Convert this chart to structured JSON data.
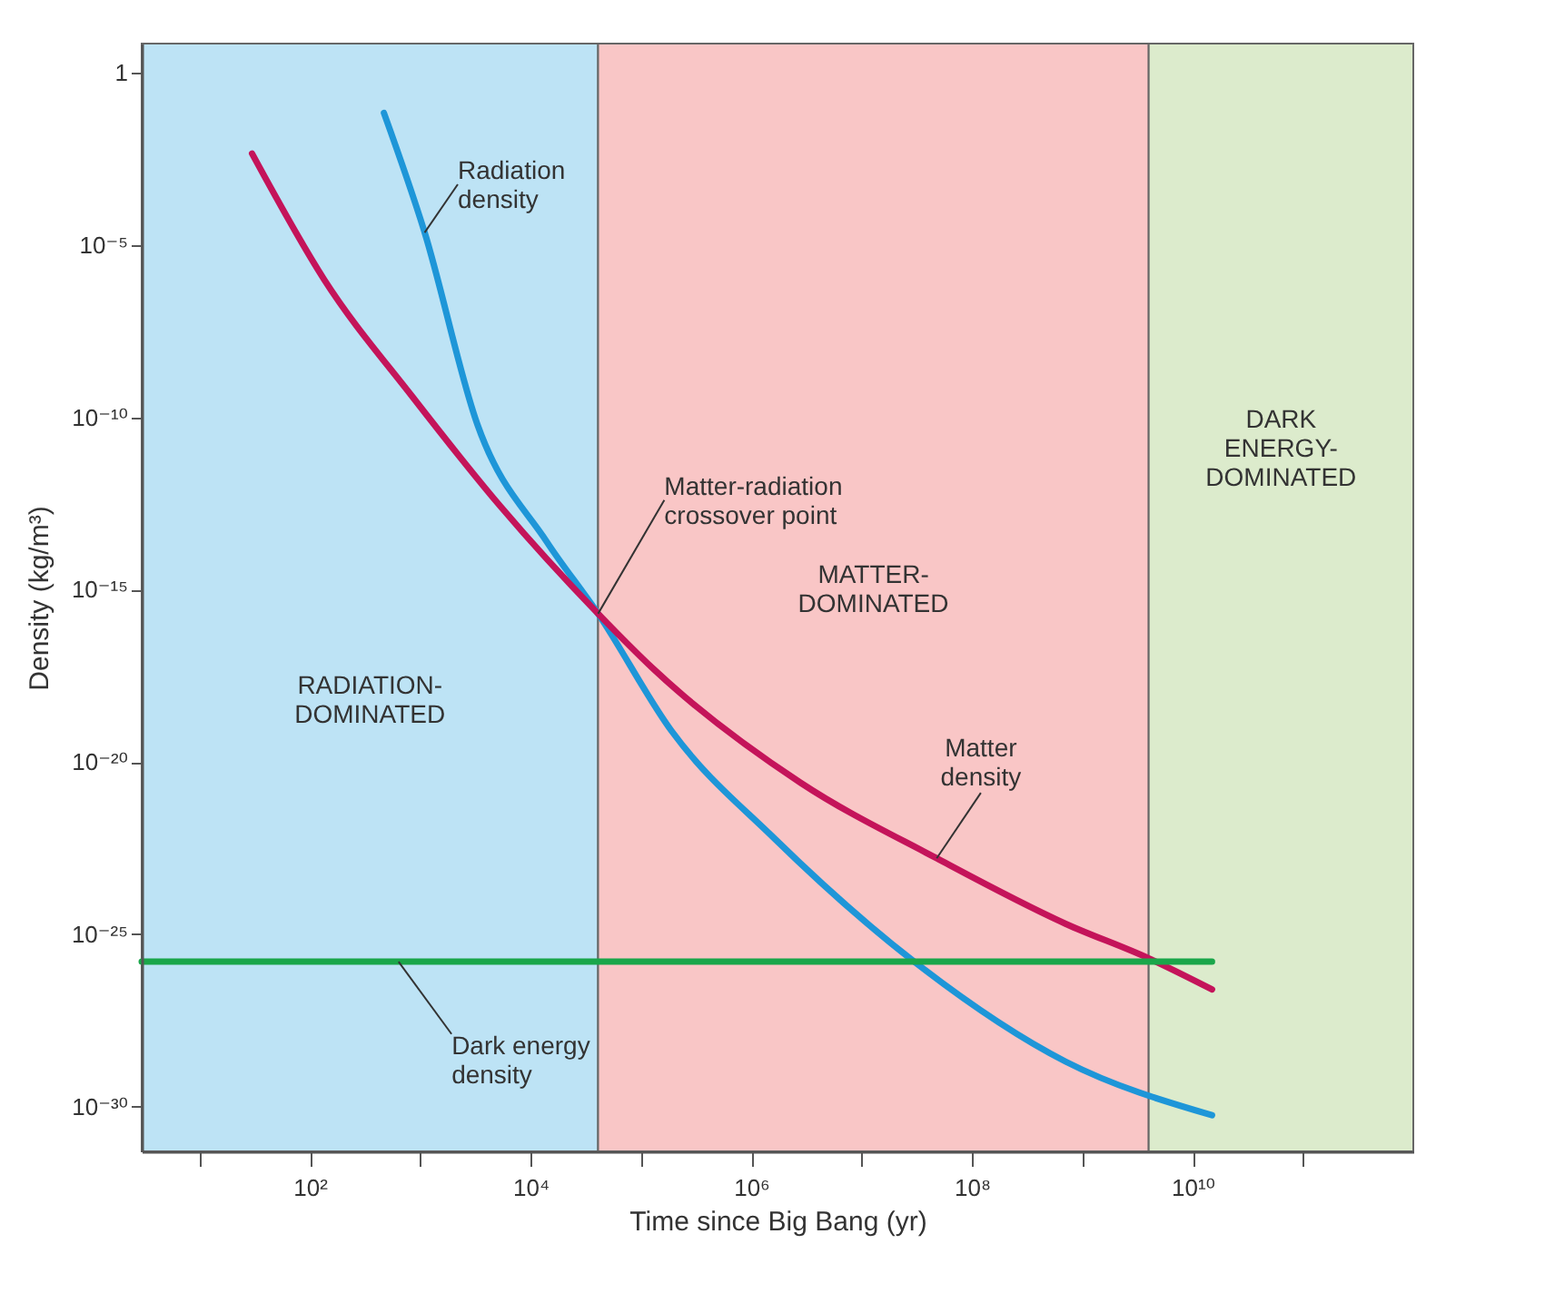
{
  "chart_data": {
    "type": "line",
    "xlabel": "Time since Big Bang (yr)",
    "ylabel": "Density (kg/m³)",
    "log": "xy",
    "xlim": [
      3,
      1000000000000.0
    ],
    "ylim": [
      5e-32,
      7
    ],
    "xticks": [
      {
        "value": 10,
        "label": null
      },
      {
        "value": 100,
        "label": "10²"
      },
      {
        "value": 1000,
        "label": null
      },
      {
        "value": 10000,
        "label": "10⁴"
      },
      {
        "value": 100000,
        "label": null
      },
      {
        "value": 1000000,
        "label": "10⁶"
      },
      {
        "value": 10000000,
        "label": null
      },
      {
        "value": 100000000,
        "label": "10⁸"
      },
      {
        "value": 1000000000,
        "label": null
      },
      {
        "value": 10000000000,
        "label": "10¹⁰"
      },
      {
        "value": 100000000000,
        "label": null
      }
    ],
    "yticks": [
      1,
      {
        "value": 1e-05,
        "label": "10⁻⁵"
      },
      {
        "value": 1e-10,
        "label": "10⁻¹⁰"
      },
      {
        "value": 1e-15,
        "label": "10⁻¹⁵"
      },
      {
        "value": 1e-20,
        "label": "10⁻²⁰"
      },
      {
        "value": 1e-25,
        "label": "10⁻²⁵"
      },
      {
        "value": 1e-30,
        "label": "10⁻³⁰"
      }
    ],
    "bands": [
      {
        "axis": "x",
        "from": 3,
        "to": 41000,
        "label": "RADIATION-DOMINATED",
        "color": "#bde3f5"
      },
      {
        "axis": "x",
        "from": 41000,
        "to": 4000000000,
        "label": "MATTER-DOMINATED",
        "color": "#f9c6c6"
      },
      {
        "axis": "x",
        "from": 4000000000,
        "to": 1000000000000.0,
        "label": "DARK ENERGY-DOMINATED",
        "color": "#dcebcc"
      }
    ],
    "series": [
      {
        "name": "Radiation density",
        "color": "#1e96d8",
        "x": [
          470,
          1100,
          3300,
          14000,
          41000,
          190000,
          1600000,
          30000000,
          710000000,
          15000000000
        ],
        "values": [
          0.068,
          2.3e-05,
          6.3e-11,
          2.5e-14,
          2e-16,
          7.9e-20,
          6.3e-23,
          1.6e-26,
          2e-29,
          5.6e-31
        ]
      },
      {
        "name": "Matter density",
        "color": "#c4145a",
        "x": [
          30,
          135,
          850,
          5400,
          41000,
          130000,
          2800000,
          48000000,
          710000000,
          4000000000,
          15000000000
        ],
        "values": [
          0.0045,
          1e-06,
          4e-10,
          2.5e-13,
          2e-16,
          5e-18,
          2.5e-21,
          1.6e-23,
          2e-25,
          2e-26,
          2.5e-27
        ]
      },
      {
        "name": "Dark energy density",
        "color": "#1aa64a",
        "x": [
          3,
          15000000000
        ],
        "values": [
          1.6e-26,
          1.6e-26
        ]
      }
    ],
    "annotations": [
      {
        "text": "Matter-radiation crossover point",
        "x": 41000,
        "y": 2e-16
      }
    ]
  }
}
